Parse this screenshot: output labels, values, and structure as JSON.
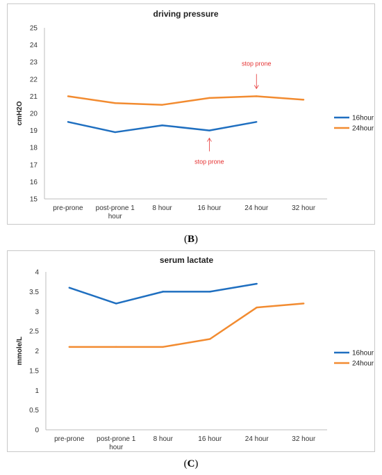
{
  "captions": {
    "b_letter": "B",
    "c_letter": "C"
  },
  "chart_data": [
    {
      "type": "line",
      "title": "driving pressure",
      "ylabel": "cmH2O",
      "xlabel": "",
      "ylim": [
        15,
        25
      ],
      "yticks": [
        "15",
        "16",
        "17",
        "18",
        "19",
        "20",
        "21",
        "22",
        "23",
        "24",
        "25"
      ],
      "categories": [
        "pre-prone",
        "post-prone 1 hour",
        "8 hour",
        "16 hour",
        "24 hour",
        "32 hour"
      ],
      "series": [
        {
          "name": "16hour",
          "color": "#1f6fc0",
          "values": [
            19.5,
            18.9,
            19.3,
            19.0,
            19.5,
            null
          ]
        },
        {
          "name": "24hour",
          "color": "#f28b30",
          "values": [
            21.0,
            20.6,
            20.5,
            20.9,
            21.0,
            20.8
          ]
        }
      ],
      "annotations": [
        {
          "text": "stop prone",
          "category": "16 hour",
          "series": "16hour",
          "position": "below",
          "color": "#e53030"
        },
        {
          "text": "stop prone",
          "category": "24 hour",
          "series": "24hour",
          "position": "above",
          "color": "#e53030"
        }
      ],
      "legend": "right",
      "grid": false
    },
    {
      "type": "line",
      "title": "serum lactate",
      "ylabel": "mmole/L",
      "xlabel": "",
      "ylim": [
        0,
        4
      ],
      "yticks": [
        "0",
        "0.5",
        "1",
        "1.5",
        "2",
        "2.5",
        "3",
        "3.5",
        "4"
      ],
      "categories": [
        "pre-prone",
        "post-prone 1 hour",
        "8 hour",
        "16 hour",
        "24 hour",
        "32 hour"
      ],
      "series": [
        {
          "name": "16hour",
          "color": "#1f6fc0",
          "values": [
            3.6,
            3.2,
            3.5,
            3.5,
            3.7,
            null
          ]
        },
        {
          "name": "24hour",
          "color": "#f28b30",
          "values": [
            2.1,
            2.1,
            2.1,
            2.3,
            3.1,
            3.2
          ]
        }
      ],
      "annotations": [],
      "legend": "right",
      "grid": false
    }
  ]
}
